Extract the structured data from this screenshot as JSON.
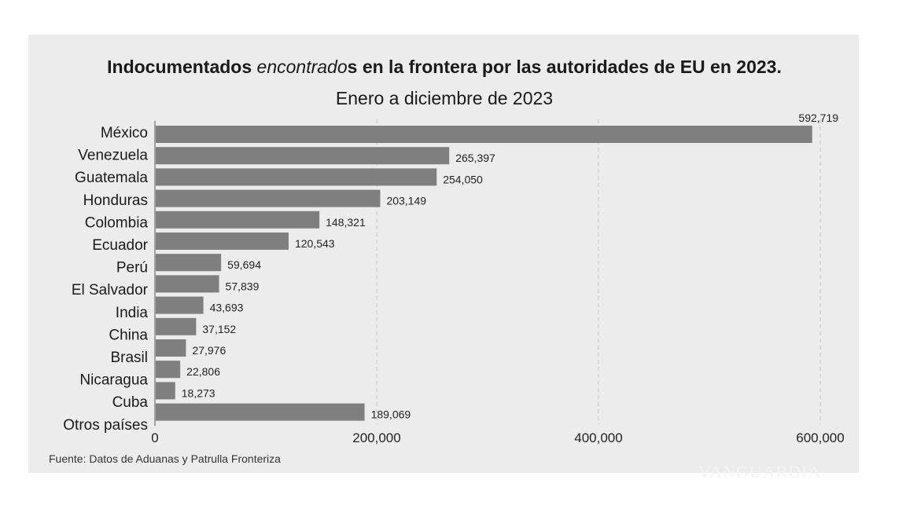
{
  "chart_data": {
    "type": "bar",
    "orientation": "horizontal",
    "title": "Indocumentados encontrados en la frontera por las autoridades de EU en 2023.",
    "title_parts": {
      "before": "Indocumentados ",
      "italic": "encontrado",
      "after": "s en la frontera por las autoridades de EU en 2023."
    },
    "subtitle": "Enero a diciembre de 2023",
    "categories": [
      "México",
      "Venezuela",
      "Guatemala",
      "Honduras",
      "Colombia",
      "Ecuador",
      "Perú",
      "El Salvador",
      "India",
      "China",
      "Brasil",
      "Nicaragua",
      "Cuba",
      "Otros países"
    ],
    "values": [
      592719,
      265397,
      254050,
      203149,
      148321,
      120543,
      59694,
      57839,
      43693,
      37152,
      27976,
      22806,
      18273,
      189069
    ],
    "value_labels": [
      "592,719",
      "265,397",
      "254,050",
      "203,149",
      "148,321",
      "120,543",
      "59,694",
      "57,839",
      "43,693",
      "37,152",
      "27,976",
      "22,806",
      "18,273",
      "189,069"
    ],
    "xlim": [
      0,
      600000
    ],
    "xticks": [
      0,
      200000,
      400000,
      600000
    ],
    "xtick_labels": [
      "0",
      "200,000",
      "400,000",
      "600,000"
    ],
    "grid": "vertical dashed",
    "bar_color": "#7f7f7f",
    "background": "#ececec",
    "source": "Fuente: Datos de Aduanas y Patrulla Fronteriza",
    "watermark": "VANGUARDIA"
  }
}
